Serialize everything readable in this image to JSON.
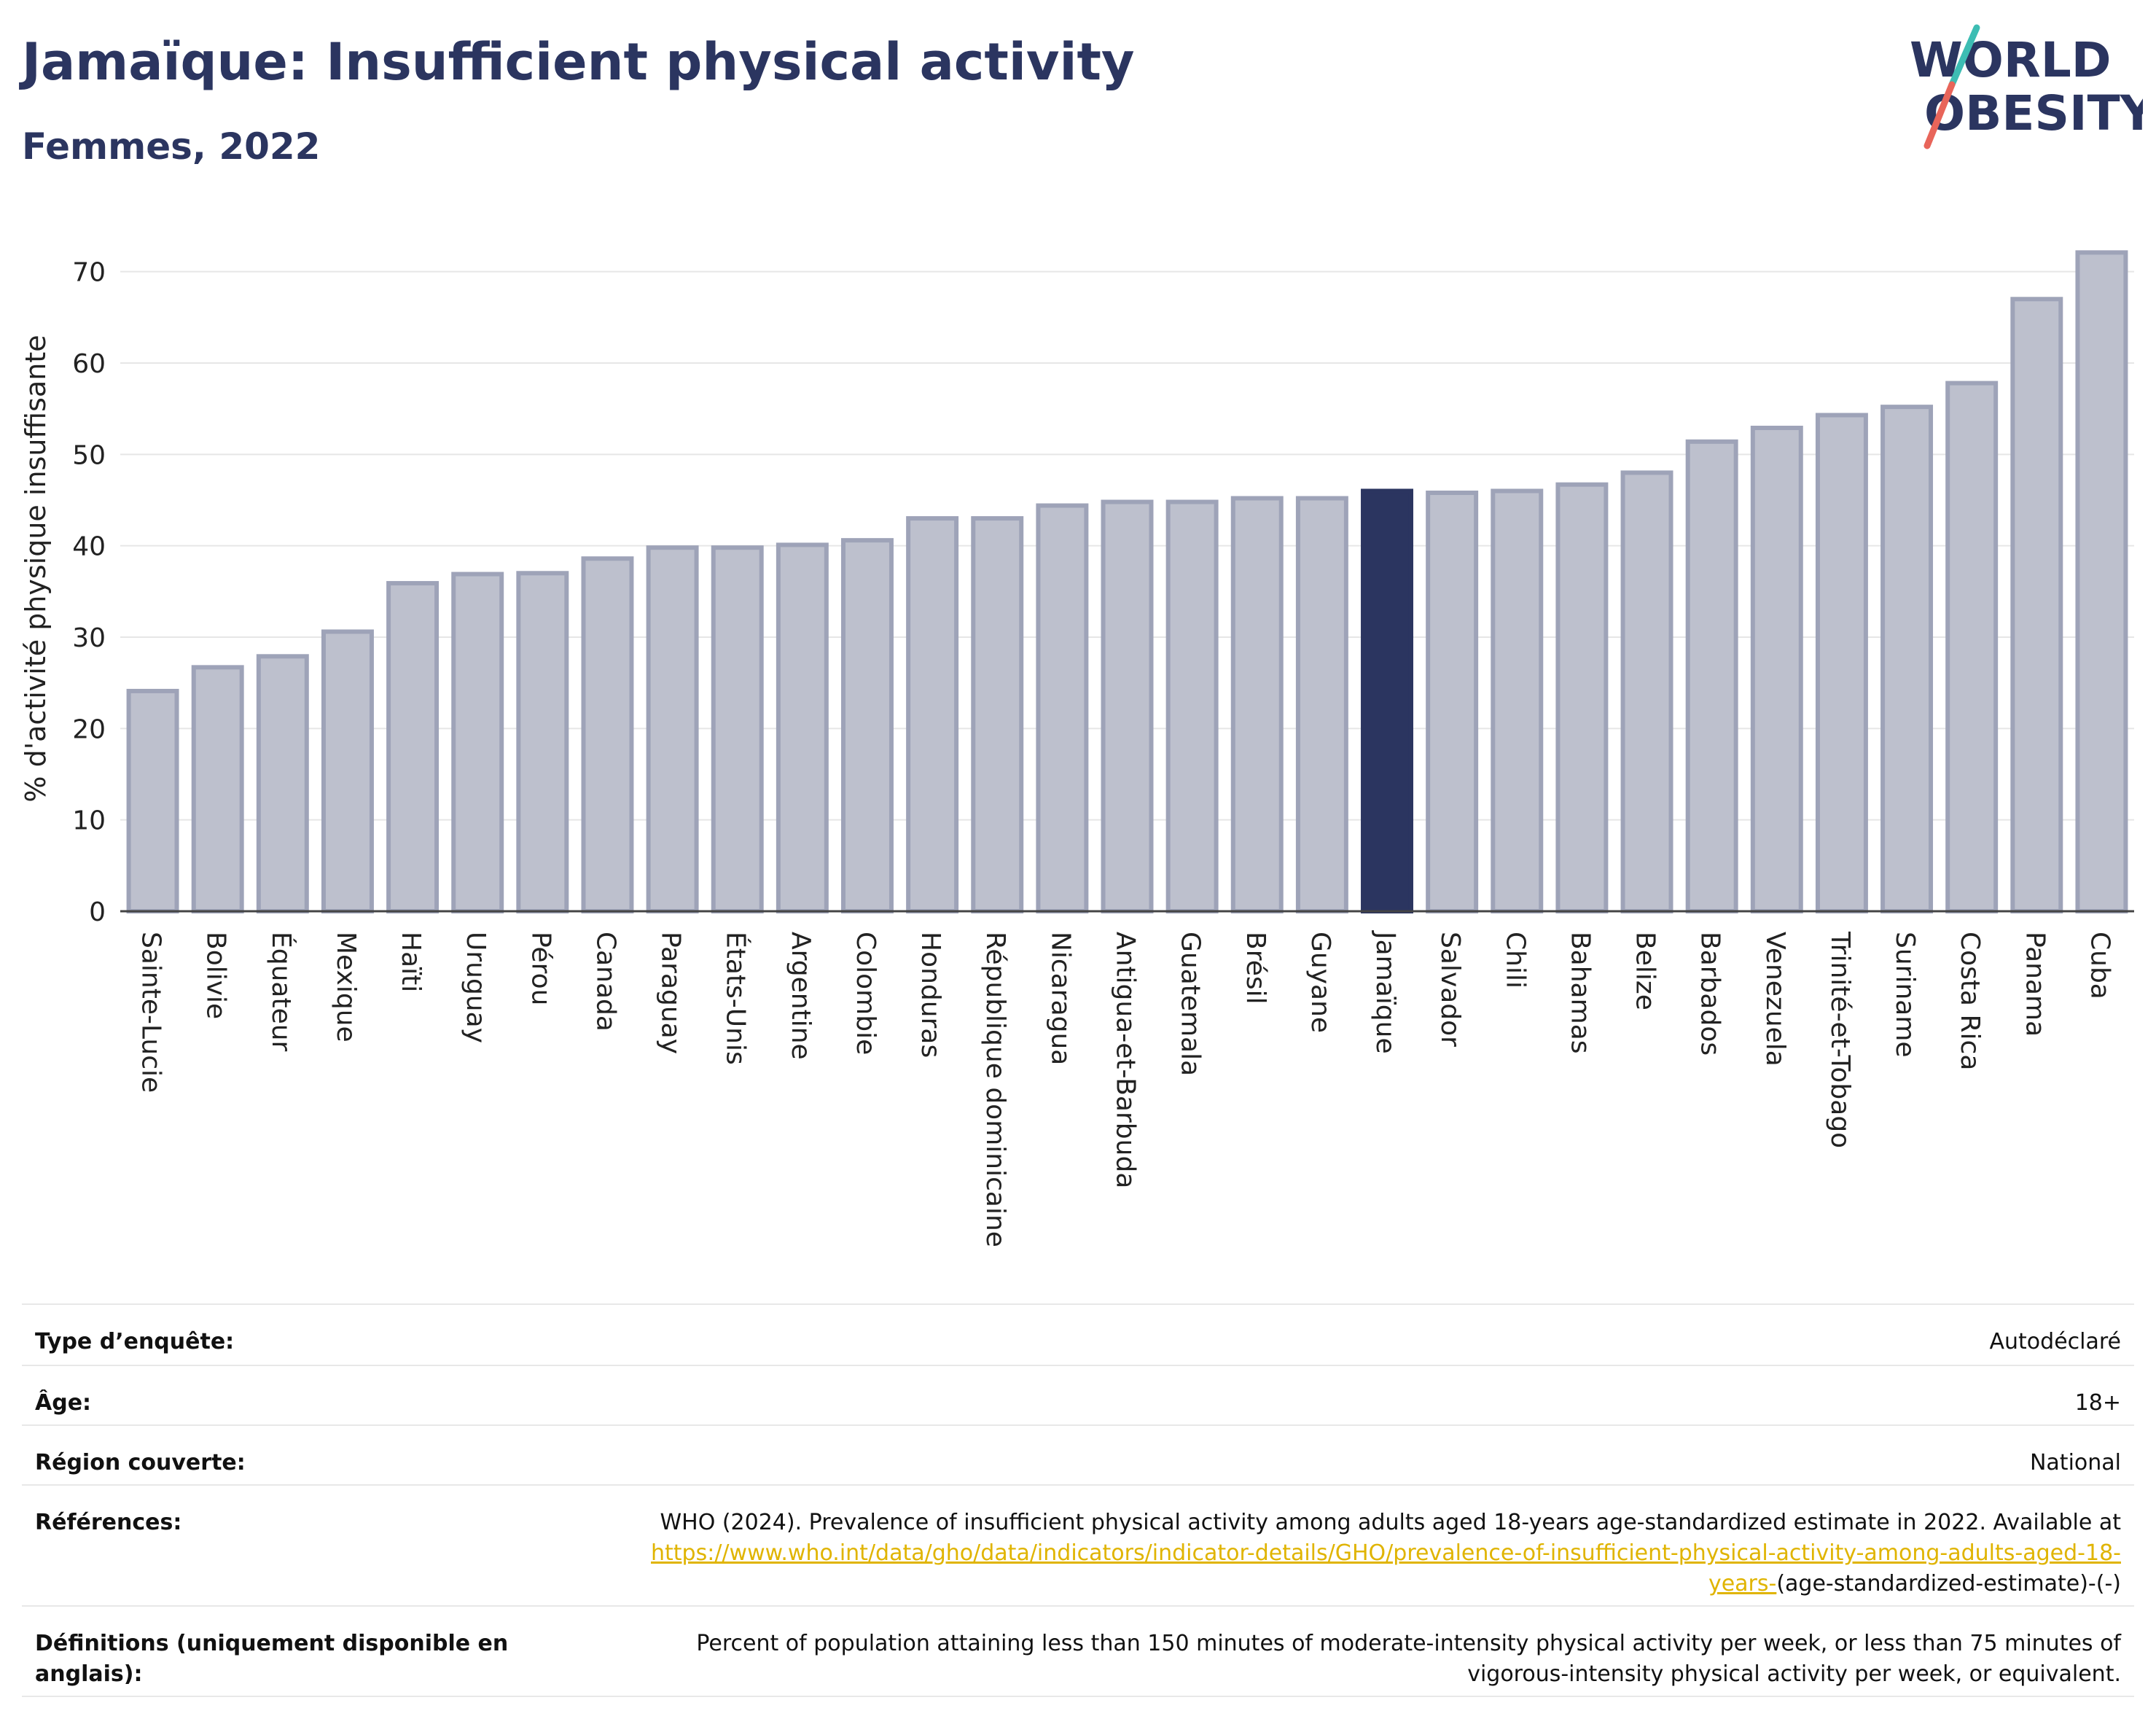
{
  "header": {
    "title": "Jamaïque: Insufficient physical activity",
    "subtitle": "Femmes, 2022",
    "logo_line1": "WORLD",
    "logo_line2": "OBESITY"
  },
  "colors": {
    "bar": "#bdc0cd",
    "bar_border": "#9ea3b8",
    "highlight": "#2b3560",
    "title": "#2b3560",
    "logo_teal": "#3dbdb3",
    "logo_red": "#e8655a",
    "grid": "#e6e6e6",
    "link": "#e0b400"
  },
  "chart_data": {
    "type": "bar",
    "ylabel": "% d'activité physique insuffisante",
    "ylim": [
      0,
      75
    ],
    "yticks": [
      "0",
      "10",
      "20",
      "30",
      "40",
      "50",
      "60",
      "70"
    ],
    "grid": true,
    "highlight": "Jamaïque",
    "categories": [
      "Sainte-Lucie",
      "Bolivie",
      "Équateur",
      "Mexique",
      "Haïti",
      "Uruguay",
      "Pérou",
      "Canada",
      "Paraguay",
      "États-Unis",
      "Argentine",
      "Colombie",
      "Honduras",
      "République dominicaine",
      "Nicaragua",
      "Antigua-et-Barbuda",
      "Guatemala",
      "Brésil",
      "Guyane",
      "Jamaïque",
      "Salvador",
      "Chili",
      "Bahamas",
      "Belize",
      "Barbados",
      "Venezuela",
      "Trinité-et-Tobago",
      "Suriname",
      "Costa Rica",
      "Panama",
      "Cuba"
    ],
    "values": [
      24.1,
      26.7,
      27.9,
      30.6,
      35.9,
      36.9,
      37.0,
      38.6,
      39.8,
      39.8,
      40.1,
      40.6,
      43.0,
      43.0,
      44.4,
      44.8,
      44.8,
      45.2,
      45.2,
      46.0,
      45.8,
      46.0,
      46.7,
      48.0,
      51.4,
      52.9,
      54.3,
      55.2,
      57.8,
      67.0,
      72.1
    ]
  },
  "info": {
    "survey_type": {
      "label": "Type d’enquête:",
      "value": "Autodéclaré"
    },
    "age": {
      "label": "Âge:",
      "value": "18+"
    },
    "region": {
      "label": "Région couverte:",
      "value": "National"
    },
    "references": {
      "label": "Références:",
      "text": "WHO (2024). Prevalence of insufficient physical activity among adults aged 18-years age-standardized estimate in 2022. Available at",
      "link": "https://www.who.int/data/gho/data/indicators/indicator-details/GHO/prevalence-of-insufficient-physical-activity-among-adults-aged-18-years-",
      "suffix": "(age-standardized-estimate)-(-)"
    },
    "definitions": {
      "label": "Définitions (uniquement disponible en anglais):",
      "value": "Percent of population attaining less than 150 minutes of moderate-intensity physical activity per week, or less than 75 minutes of vigorous-intensity physical activity per week, or equivalent."
    }
  }
}
